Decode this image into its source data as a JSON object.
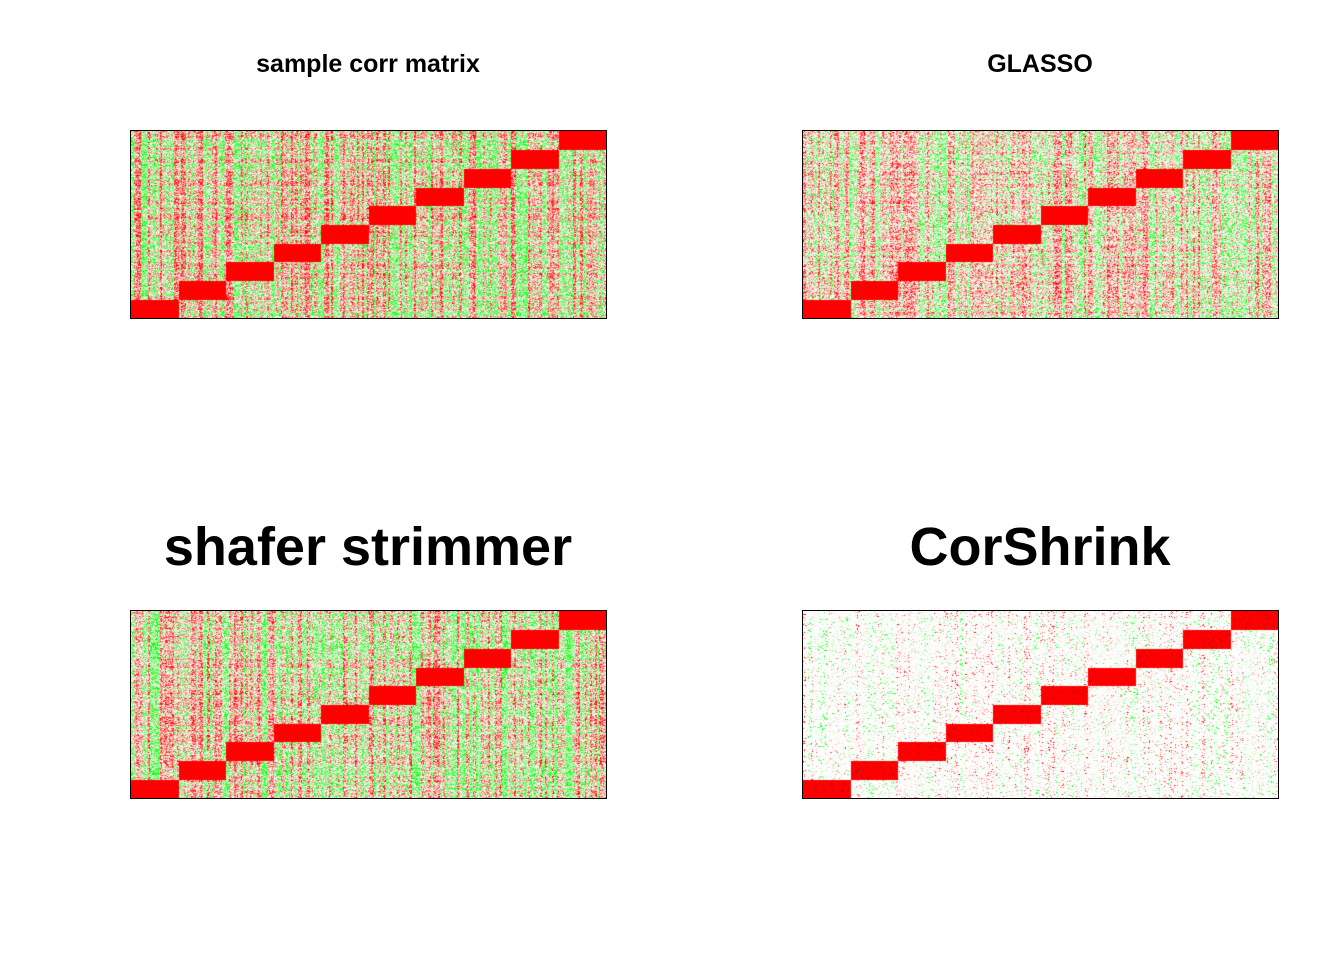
{
  "chart_data": [
    {
      "type": "heatmap",
      "title": "sample corr matrix",
      "n_blocks": 10,
      "colors": {
        "negative": "#00ff00",
        "zero": "#ffffff",
        "positive": "#ff0000"
      },
      "off_block_density": 0.85,
      "diagonal_blocks": "strong positive (red), running bottom-left to top-right"
    },
    {
      "type": "heatmap",
      "title": "GLASSO",
      "n_blocks": 10,
      "colors": {
        "negative": "#00ff00",
        "zero": "#ffffff",
        "positive": "#ff0000"
      },
      "off_block_density": 0.6,
      "diagonal_blocks": "strong positive (red), running bottom-left to top-right"
    },
    {
      "type": "heatmap",
      "title": "shafer strimmer",
      "n_blocks": 10,
      "colors": {
        "negative": "#00ff00",
        "zero": "#ffffff",
        "positive": "#ff0000"
      },
      "off_block_density": 0.75,
      "diagonal_blocks": "strong positive (red), running bottom-left to top-right"
    },
    {
      "type": "heatmap",
      "title": "CorShrink",
      "n_blocks": 10,
      "colors": {
        "negative": "#00ff00",
        "zero": "#ffffff",
        "positive": "#ff0000"
      },
      "off_block_density": 0.25,
      "diagonal_blocks": "strong positive (red), running bottom-left to top-right"
    }
  ]
}
